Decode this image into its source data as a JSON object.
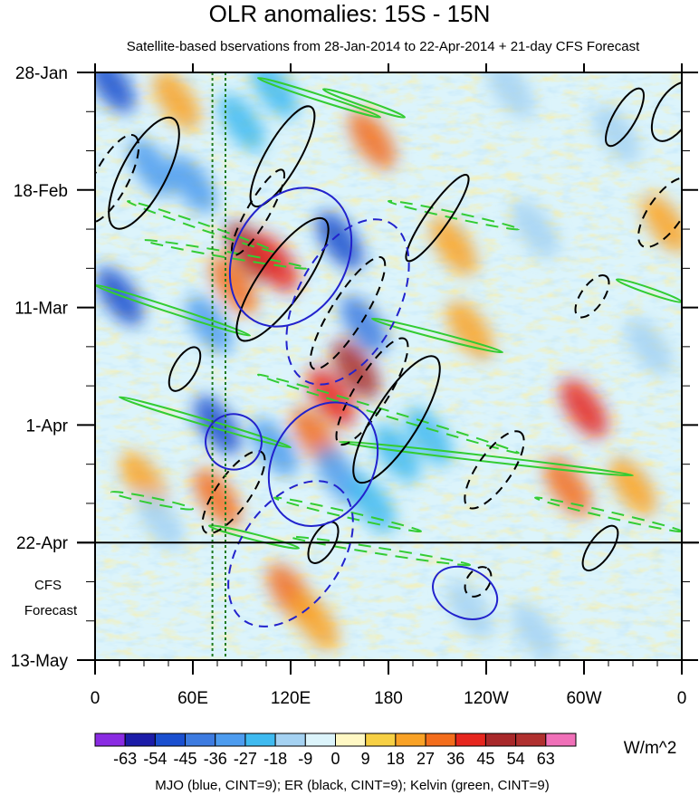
{
  "chart_data": {
    "type": "heatmap",
    "title": "OLR anomalies: 15S - 15N",
    "subtitle": "Satellite-based bservations from 28-Jan-2014 to 22-Apr-2014 + 21-day CFS Forecast",
    "x_axis": {
      "ticks": [
        "0",
        "60E",
        "120E",
        "180",
        "120W",
        "60W",
        "0"
      ],
      "tick_longitudes_east": [
        0,
        60,
        120,
        180,
        240,
        300,
        360
      ],
      "range": [
        0,
        360
      ]
    },
    "y_axis": {
      "ticks": [
        "28-Jan",
        "18-Feb",
        "11-Mar",
        "1-Apr",
        "22-Apr",
        "13-May"
      ],
      "tick_dates": [
        "2014-01-28",
        "2014-02-18",
        "2014-03-11",
        "2014-04-01",
        "2014-04-22",
        "2014-05-13"
      ],
      "range": [
        "2014-01-28",
        "2014-05-13"
      ],
      "direction": "top-to-bottom"
    },
    "observation_end": "2014-04-22",
    "forecast_label": [
      "CFS",
      "Forecast"
    ],
    "reference_longitudes_east": [
      72,
      80
    ],
    "colorbar": {
      "labels": [
        "-63",
        "-54",
        "-45",
        "-36",
        "-27",
        "-18",
        "-9",
        "0",
        "9",
        "18",
        "27",
        "36",
        "45",
        "54",
        "63"
      ],
      "colors": [
        "#8a2be2",
        "#1c1ca8",
        "#1a4fcf",
        "#3d7be0",
        "#4d9cef",
        "#3fbaf0",
        "#a5d2f2",
        "#dcf4fb",
        "#fff8c4",
        "#f7d044",
        "#f9a226",
        "#f36d1c",
        "#e6261e",
        "#a8282a",
        "#b0302f",
        "#f070b8"
      ],
      "units": "W/m^2"
    },
    "footer": "MJO (blue, CINT=9); ER (black, CINT=9); Kelvin (green, CINT=9)",
    "overlay_colors": {
      "mjo": "#2222cc",
      "er": "#000000",
      "kelvin": "#33cc33"
    },
    "anomaly_features": [
      {
        "lon": 95,
        "date": "2014-03-01",
        "value": 45
      },
      {
        "lon": 110,
        "date": "2014-03-03",
        "value": 36
      },
      {
        "lon": 85,
        "date": "2014-03-07",
        "value": 27
      },
      {
        "lon": 160,
        "date": "2014-03-22",
        "value": 45
      },
      {
        "lon": 145,
        "date": "2014-03-27",
        "value": 36
      },
      {
        "lon": 135,
        "date": "2014-04-03",
        "value": 27
      },
      {
        "lon": 170,
        "date": "2014-02-09",
        "value": 27
      },
      {
        "lon": 75,
        "date": "2014-04-14",
        "value": 27
      },
      {
        "lon": 120,
        "date": "2014-05-01",
        "value": 27
      },
      {
        "lon": 135,
        "date": "2014-05-06",
        "value": 18
      },
      {
        "lon": 220,
        "date": "2014-02-28",
        "value": 18
      },
      {
        "lon": 230,
        "date": "2014-03-15",
        "value": 18
      },
      {
        "lon": 290,
        "date": "2014-04-12",
        "value": 27
      },
      {
        "lon": 300,
        "date": "2014-03-29",
        "value": 36
      },
      {
        "lon": 50,
        "date": "2014-02-02",
        "value": 18
      },
      {
        "lon": 350,
        "date": "2014-02-24",
        "value": 18
      },
      {
        "lon": 30,
        "date": "2014-04-11",
        "value": 18
      },
      {
        "lon": 330,
        "date": "2014-04-12",
        "value": 18
      },
      {
        "lon": 10,
        "date": "2014-01-30",
        "value": -54
      },
      {
        "lon": 35,
        "date": "2014-02-14",
        "value": -36
      },
      {
        "lon": 60,
        "date": "2014-02-17",
        "value": -36
      },
      {
        "lon": 15,
        "date": "2014-03-09",
        "value": -54
      },
      {
        "lon": 70,
        "date": "2014-03-14",
        "value": -36
      },
      {
        "lon": 150,
        "date": "2014-02-27",
        "value": -54
      },
      {
        "lon": 165,
        "date": "2014-03-14",
        "value": -45
      },
      {
        "lon": 75,
        "date": "2014-04-01",
        "value": -54
      },
      {
        "lon": 110,
        "date": "2014-04-05",
        "value": -36
      },
      {
        "lon": 150,
        "date": "2014-04-10",
        "value": -36
      },
      {
        "lon": 185,
        "date": "2014-04-06",
        "value": -27
      },
      {
        "lon": 205,
        "date": "2014-04-03",
        "value": -27
      },
      {
        "lon": 170,
        "date": "2014-04-15",
        "value": -27
      },
      {
        "lon": 230,
        "date": "2014-05-04",
        "value": -18
      },
      {
        "lon": 270,
        "date": "2014-05-08",
        "value": -18
      },
      {
        "lon": 320,
        "date": "2014-02-08",
        "value": -18
      },
      {
        "lon": 340,
        "date": "2014-03-18",
        "value": -18
      },
      {
        "lon": 270,
        "date": "2014-02-25",
        "value": -18
      },
      {
        "lon": 110,
        "date": "2014-01-31",
        "value": -27
      },
      {
        "lon": 90,
        "date": "2014-02-06",
        "value": -27
      },
      {
        "lon": 40,
        "date": "2014-04-18",
        "value": -18
      },
      {
        "lon": 255,
        "date": "2014-01-31",
        "value": -18
      }
    ],
    "mjo_contours": [
      {
        "lon": 120,
        "date": "2014-03-02",
        "rlon": 45,
        "rdays": 10,
        "tilt": -60,
        "dashed": false
      },
      {
        "lon": 140,
        "date": "2014-04-08",
        "rlon": 40,
        "rdays": 9,
        "tilt": -60,
        "dashed": false
      },
      {
        "lon": 155,
        "date": "2014-03-10",
        "rlon": 55,
        "rdays": 9,
        "tilt": -62,
        "dashed": true
      },
      {
        "lon": 120,
        "date": "2014-04-24",
        "rlon": 50,
        "rdays": 9,
        "tilt": -55,
        "dashed": true
      },
      {
        "lon": 227,
        "date": "2014-05-01",
        "rlon": 15,
        "rdays": 6,
        "tilt": -65,
        "dashed": false
      },
      {
        "lon": 85,
        "date": "2014-04-04",
        "rlon": 17,
        "rdays": 5,
        "tilt": -70,
        "dashed": false
      }
    ],
    "er_contours": [
      {
        "lon": 30,
        "date": "2014-02-15",
        "rlon": 38,
        "rdays": 4,
        "tilt": -62,
        "dashed": false
      },
      {
        "lon": 10,
        "date": "2014-02-16",
        "rlon": 30,
        "rdays": 3,
        "tilt": -62,
        "dashed": true
      },
      {
        "lon": 115,
        "date": "2014-03-06",
        "rlon": 45,
        "rdays": 4,
        "tilt": -55,
        "dashed": false
      },
      {
        "lon": 185,
        "date": "2014-03-31",
        "rlon": 45,
        "rdays": 4,
        "tilt": -58,
        "dashed": false
      },
      {
        "lon": 170,
        "date": "2014-03-26",
        "rlon": 38,
        "rdays": 3,
        "tilt": -58,
        "dashed": true
      },
      {
        "lon": 155,
        "date": "2014-03-12",
        "rlon": 40,
        "rdays": 3,
        "tilt": -58,
        "dashed": true
      },
      {
        "lon": 85,
        "date": "2014-04-13",
        "rlon": 30,
        "rdays": 3,
        "tilt": -55,
        "dashed": true
      },
      {
        "lon": 210,
        "date": "2014-02-23",
        "rlon": 32,
        "rdays": 2,
        "tilt": -55,
        "dashed": false
      },
      {
        "lon": 245,
        "date": "2014-04-09",
        "rlon": 28,
        "rdays": 3,
        "tilt": -55,
        "dashed": true
      },
      {
        "lon": 310,
        "date": "2014-04-23",
        "rlon": 16,
        "rdays": 2,
        "tilt": -55,
        "dashed": false
      },
      {
        "lon": 235,
        "date": "2014-04-29",
        "rlon": 10,
        "rdays": 2,
        "tilt": -55,
        "dashed": true
      },
      {
        "lon": 325,
        "date": "2014-02-05",
        "rlon": 20,
        "rdays": 2,
        "tilt": -60,
        "dashed": false
      },
      {
        "lon": 355,
        "date": "2014-02-04",
        "rlon": 20,
        "rdays": 3,
        "tilt": -60,
        "dashed": false
      },
      {
        "lon": 350,
        "date": "2014-02-22",
        "rlon": 25,
        "rdays": 3,
        "tilt": -55,
        "dashed": true
      },
      {
        "lon": 305,
        "date": "2014-03-09",
        "rlon": 15,
        "rdays": 2,
        "tilt": -55,
        "dashed": true
      },
      {
        "lon": 115,
        "date": "2014-02-12",
        "rlon": 35,
        "rdays": 3,
        "tilt": -60,
        "dashed": false
      },
      {
        "lon": 100,
        "date": "2014-02-22",
        "rlon": 30,
        "rdays": 2,
        "tilt": -60,
        "dashed": true
      },
      {
        "lon": 55,
        "date": "2014-03-22",
        "rlon": 15,
        "rdays": 2,
        "tilt": -60,
        "dashed": false
      },
      {
        "lon": 140,
        "date": "2014-04-22",
        "rlon": 14,
        "rdays": 2,
        "tilt": -60,
        "dashed": false
      }
    ],
    "kelvin_bands": [
      {
        "lon1": 0,
        "date1": "2014-03-07",
        "lon2": 95,
        "date2": "2014-03-16",
        "dashed": false
      },
      {
        "lon1": 15,
        "date1": "2014-03-27",
        "lon2": 120,
        "date2": "2014-04-05",
        "dashed": false
      },
      {
        "lon1": 100,
        "date1": "2014-03-23",
        "lon2": 260,
        "date2": "2014-04-06",
        "dashed": true
      },
      {
        "lon1": 150,
        "date1": "2014-04-04",
        "lon2": 330,
        "date2": "2014-04-10",
        "dashed": false
      },
      {
        "lon1": 140,
        "date1": "2014-01-31",
        "lon2": 190,
        "date2": "2014-02-05",
        "dashed": false
      },
      {
        "lon1": 100,
        "date1": "2014-01-29",
        "lon2": 175,
        "date2": "2014-02-05",
        "dashed": false
      },
      {
        "lon1": 170,
        "date1": "2014-03-13",
        "lon2": 250,
        "date2": "2014-03-19",
        "dashed": false
      },
      {
        "lon1": 320,
        "date1": "2014-03-06",
        "lon2": 360,
        "date2": "2014-03-10",
        "dashed": false
      },
      {
        "lon1": 20,
        "date1": "2014-02-20",
        "lon2": 110,
        "date2": "2014-03-01",
        "dashed": true
      },
      {
        "lon1": 110,
        "date1": "2014-04-14",
        "lon2": 200,
        "date2": "2014-04-20",
        "dashed": true
      },
      {
        "lon1": 120,
        "date1": "2014-04-21",
        "lon2": 230,
        "date2": "2014-04-26",
        "dashed": true
      },
      {
        "lon1": 10,
        "date1": "2014-04-13",
        "lon2": 60,
        "date2": "2014-04-16",
        "dashed": true
      },
      {
        "lon1": 270,
        "date1": "2014-04-14",
        "lon2": 360,
        "date2": "2014-04-20",
        "dashed": true
      },
      {
        "lon1": 70,
        "date1": "2014-04-19",
        "lon2": 125,
        "date2": "2014-04-23",
        "dashed": false
      },
      {
        "lon1": 180,
        "date1": "2014-02-20",
        "lon2": 260,
        "date2": "2014-02-25",
        "dashed": true
      },
      {
        "lon1": 30,
        "date1": "2014-02-27",
        "lon2": 130,
        "date2": "2014-03-04",
        "dashed": true
      }
    ]
  }
}
